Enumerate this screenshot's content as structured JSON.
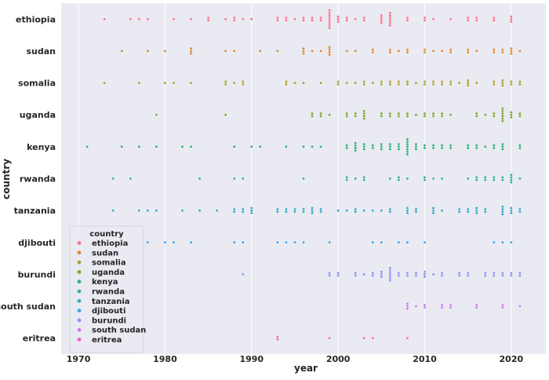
{
  "chart_data": {
    "type": "scatter",
    "title": "",
    "xlabel": "year",
    "ylabel": "country",
    "xlim": [
      1968,
      2024
    ],
    "x_ticks": [
      "1970",
      "1980",
      "1990",
      "2000",
      "2010",
      "2020"
    ],
    "x_tick_values": [
      1970,
      1980,
      1990,
      2000,
      2010,
      2020
    ],
    "grid": true,
    "background": "#eaeaf2",
    "legend": {
      "title": "country",
      "placement": "lower-left"
    },
    "categories": [
      "ethiopia",
      "sudan",
      "somalia",
      "uganda",
      "kenya",
      "rwanda",
      "tanzania",
      "djibouti",
      "burundi",
      "south sudan",
      "eritrea"
    ],
    "series": [
      {
        "name": "ethiopia",
        "color": "#f77189",
        "points": [
          [
            1973,
            1
          ],
          [
            1976,
            1
          ],
          [
            1977,
            1
          ],
          [
            1978,
            1
          ],
          [
            1981,
            1
          ],
          [
            1983,
            1
          ],
          [
            1985,
            2
          ],
          [
            1987,
            1
          ],
          [
            1988,
            2
          ],
          [
            1989,
            1
          ],
          [
            1990,
            1
          ],
          [
            1993,
            2
          ],
          [
            1994,
            2
          ],
          [
            1995,
            1
          ],
          [
            1996,
            2
          ],
          [
            1997,
            2
          ],
          [
            1998,
            2
          ],
          [
            1999,
            8
          ],
          [
            2000,
            3
          ],
          [
            2001,
            2
          ],
          [
            2002,
            1
          ],
          [
            2003,
            2
          ],
          [
            2005,
            4
          ],
          [
            2006,
            6
          ],
          [
            2008,
            2
          ],
          [
            2010,
            2
          ],
          [
            2011,
            1
          ],
          [
            2013,
            1
          ],
          [
            2015,
            2
          ],
          [
            2016,
            2
          ],
          [
            2018,
            2
          ],
          [
            2020,
            3
          ]
        ]
      },
      {
        "name": "sudan",
        "color": "#dc8932",
        "points": [
          [
            1975,
            1
          ],
          [
            1978,
            1
          ],
          [
            1980,
            1
          ],
          [
            1983,
            3
          ],
          [
            1987,
            1
          ],
          [
            1988,
            1
          ],
          [
            1991,
            1
          ],
          [
            1993,
            1
          ],
          [
            1996,
            3
          ],
          [
            1997,
            1
          ],
          [
            1998,
            1
          ],
          [
            1999,
            4
          ],
          [
            2001,
            1
          ],
          [
            2002,
            1
          ],
          [
            2004,
            2
          ],
          [
            2006,
            2
          ],
          [
            2007,
            1
          ],
          [
            2008,
            2
          ],
          [
            2010,
            2
          ],
          [
            2011,
            1
          ],
          [
            2012,
            1
          ],
          [
            2013,
            2
          ],
          [
            2015,
            2
          ],
          [
            2016,
            1
          ],
          [
            2018,
            2
          ],
          [
            2019,
            2
          ],
          [
            2020,
            3
          ],
          [
            2021,
            1
          ]
        ]
      },
      {
        "name": "somalia",
        "color": "#ae9d31",
        "points": [
          [
            1973,
            1
          ],
          [
            1977,
            1
          ],
          [
            1980,
            1
          ],
          [
            1981,
            1
          ],
          [
            1983,
            1
          ],
          [
            1987,
            2
          ],
          [
            1988,
            1
          ],
          [
            1989,
            2
          ],
          [
            1994,
            2
          ],
          [
            1995,
            1
          ],
          [
            1996,
            1
          ],
          [
            1998,
            1
          ],
          [
            2000,
            2
          ],
          [
            2001,
            1
          ],
          [
            2002,
            1
          ],
          [
            2003,
            2
          ],
          [
            2004,
            1
          ],
          [
            2005,
            2
          ],
          [
            2006,
            2
          ],
          [
            2007,
            2
          ],
          [
            2008,
            2
          ],
          [
            2009,
            1
          ],
          [
            2010,
            2
          ],
          [
            2011,
            2
          ],
          [
            2012,
            2
          ],
          [
            2013,
            2
          ],
          [
            2014,
            1
          ],
          [
            2015,
            3
          ],
          [
            2016,
            1
          ],
          [
            2018,
            2
          ],
          [
            2019,
            3
          ],
          [
            2020,
            2
          ],
          [
            2021,
            2
          ]
        ]
      },
      {
        "name": "uganda",
        "color": "#77ab31",
        "points": [
          [
            1979,
            1
          ],
          [
            1987,
            1
          ],
          [
            1997,
            2
          ],
          [
            1998,
            2
          ],
          [
            1999,
            1
          ],
          [
            2001,
            2
          ],
          [
            2002,
            2
          ],
          [
            2003,
            4
          ],
          [
            2005,
            2
          ],
          [
            2006,
            2
          ],
          [
            2007,
            2
          ],
          [
            2008,
            2
          ],
          [
            2009,
            1
          ],
          [
            2010,
            2
          ],
          [
            2011,
            2
          ],
          [
            2012,
            2
          ],
          [
            2013,
            1
          ],
          [
            2016,
            2
          ],
          [
            2017,
            1
          ],
          [
            2018,
            2
          ],
          [
            2019,
            6
          ],
          [
            2020,
            3
          ],
          [
            2021,
            2
          ]
        ]
      },
      {
        "name": "kenya",
        "color": "#33b07a",
        "points": [
          [
            1971,
            1
          ],
          [
            1975,
            1
          ],
          [
            1977,
            1
          ],
          [
            1979,
            1
          ],
          [
            1982,
            1
          ],
          [
            1983,
            1
          ],
          [
            1988,
            1
          ],
          [
            1990,
            1
          ],
          [
            1991,
            1
          ],
          [
            1994,
            1
          ],
          [
            1996,
            1
          ],
          [
            1997,
            1
          ],
          [
            1998,
            1
          ],
          [
            2001,
            2
          ],
          [
            2002,
            4
          ],
          [
            2003,
            3
          ],
          [
            2004,
            2
          ],
          [
            2005,
            3
          ],
          [
            2006,
            3
          ],
          [
            2007,
            3
          ],
          [
            2008,
            7
          ],
          [
            2009,
            3
          ],
          [
            2010,
            2
          ],
          [
            2011,
            2
          ],
          [
            2012,
            2
          ],
          [
            2013,
            2
          ],
          [
            2015,
            2
          ],
          [
            2016,
            2
          ],
          [
            2017,
            1
          ],
          [
            2018,
            2
          ],
          [
            2019,
            3
          ],
          [
            2021,
            2
          ]
        ]
      },
      {
        "name": "rwanda",
        "color": "#36ada4",
        "points": [
          [
            1974,
            1
          ],
          [
            1976,
            1
          ],
          [
            1984,
            1
          ],
          [
            1988,
            1
          ],
          [
            1989,
            1
          ],
          [
            1996,
            1
          ],
          [
            2001,
            2
          ],
          [
            2002,
            1
          ],
          [
            2003,
            2
          ],
          [
            2006,
            1
          ],
          [
            2007,
            2
          ],
          [
            2008,
            1
          ],
          [
            2010,
            2
          ],
          [
            2011,
            1
          ],
          [
            2012,
            1
          ],
          [
            2015,
            1
          ],
          [
            2016,
            2
          ],
          [
            2017,
            2
          ],
          [
            2018,
            2
          ],
          [
            2019,
            2
          ],
          [
            2020,
            4
          ],
          [
            2021,
            1
          ]
        ]
      },
      {
        "name": "tanzania",
        "color": "#38a8c5",
        "points": [
          [
            1974,
            1
          ],
          [
            1977,
            1
          ],
          [
            1978,
            1
          ],
          [
            1979,
            1
          ],
          [
            1982,
            1
          ],
          [
            1984,
            1
          ],
          [
            1986,
            1
          ],
          [
            1988,
            2
          ],
          [
            1989,
            2
          ],
          [
            1990,
            3
          ],
          [
            1993,
            2
          ],
          [
            1994,
            2
          ],
          [
            1995,
            2
          ],
          [
            1996,
            2
          ],
          [
            1997,
            3
          ],
          [
            1998,
            2
          ],
          [
            2000,
            1
          ],
          [
            2001,
            1
          ],
          [
            2002,
            2
          ],
          [
            2003,
            1
          ],
          [
            2004,
            1
          ],
          [
            2005,
            1
          ],
          [
            2006,
            2
          ],
          [
            2008,
            3
          ],
          [
            2009,
            2
          ],
          [
            2011,
            3
          ],
          [
            2012,
            1
          ],
          [
            2014,
            2
          ],
          [
            2015,
            2
          ],
          [
            2016,
            3
          ],
          [
            2017,
            2
          ],
          [
            2019,
            4
          ],
          [
            2020,
            3
          ],
          [
            2021,
            2
          ]
        ]
      },
      {
        "name": "djibouti",
        "color": "#3ba3ec",
        "points": [
          [
            1978,
            1
          ],
          [
            1980,
            1
          ],
          [
            1981,
            1
          ],
          [
            1983,
            1
          ],
          [
            1988,
            1
          ],
          [
            1989,
            1
          ],
          [
            1993,
            1
          ],
          [
            1994,
            1
          ],
          [
            1995,
            1
          ],
          [
            1996,
            1
          ],
          [
            1999,
            1
          ],
          [
            2004,
            1
          ],
          [
            2005,
            1
          ],
          [
            2007,
            1
          ],
          [
            2008,
            1
          ],
          [
            2010,
            1
          ],
          [
            2018,
            1
          ],
          [
            2019,
            1
          ],
          [
            2020,
            1
          ]
        ]
      },
      {
        "name": "burundi",
        "color": "#8e8ff4",
        "points": [
          [
            1989,
            1
          ],
          [
            1999,
            2
          ],
          [
            2000,
            2
          ],
          [
            2002,
            2
          ],
          [
            2003,
            1
          ],
          [
            2004,
            2
          ],
          [
            2005,
            3
          ],
          [
            2006,
            6
          ],
          [
            2007,
            2
          ],
          [
            2008,
            2
          ],
          [
            2009,
            2
          ],
          [
            2010,
            3
          ],
          [
            2011,
            1
          ],
          [
            2012,
            2
          ],
          [
            2014,
            2
          ],
          [
            2015,
            2
          ],
          [
            2017,
            2
          ],
          [
            2018,
            2
          ],
          [
            2019,
            2
          ],
          [
            2020,
            2
          ],
          [
            2021,
            2
          ]
        ]
      },
      {
        "name": "south sudan",
        "color": "#cc7af4",
        "points": [
          [
            2008,
            3
          ],
          [
            2009,
            1
          ],
          [
            2010,
            2
          ],
          [
            2012,
            2
          ],
          [
            2013,
            2
          ],
          [
            2016,
            2
          ],
          [
            2019,
            2
          ],
          [
            2021,
            1
          ]
        ]
      },
      {
        "name": "eritrea",
        "color": "#f45fc9",
        "points": [
          [
            1993,
            2
          ],
          [
            1999,
            1
          ],
          [
            2003,
            1
          ],
          [
            2004,
            1
          ],
          [
            2008,
            1
          ]
        ]
      }
    ]
  }
}
